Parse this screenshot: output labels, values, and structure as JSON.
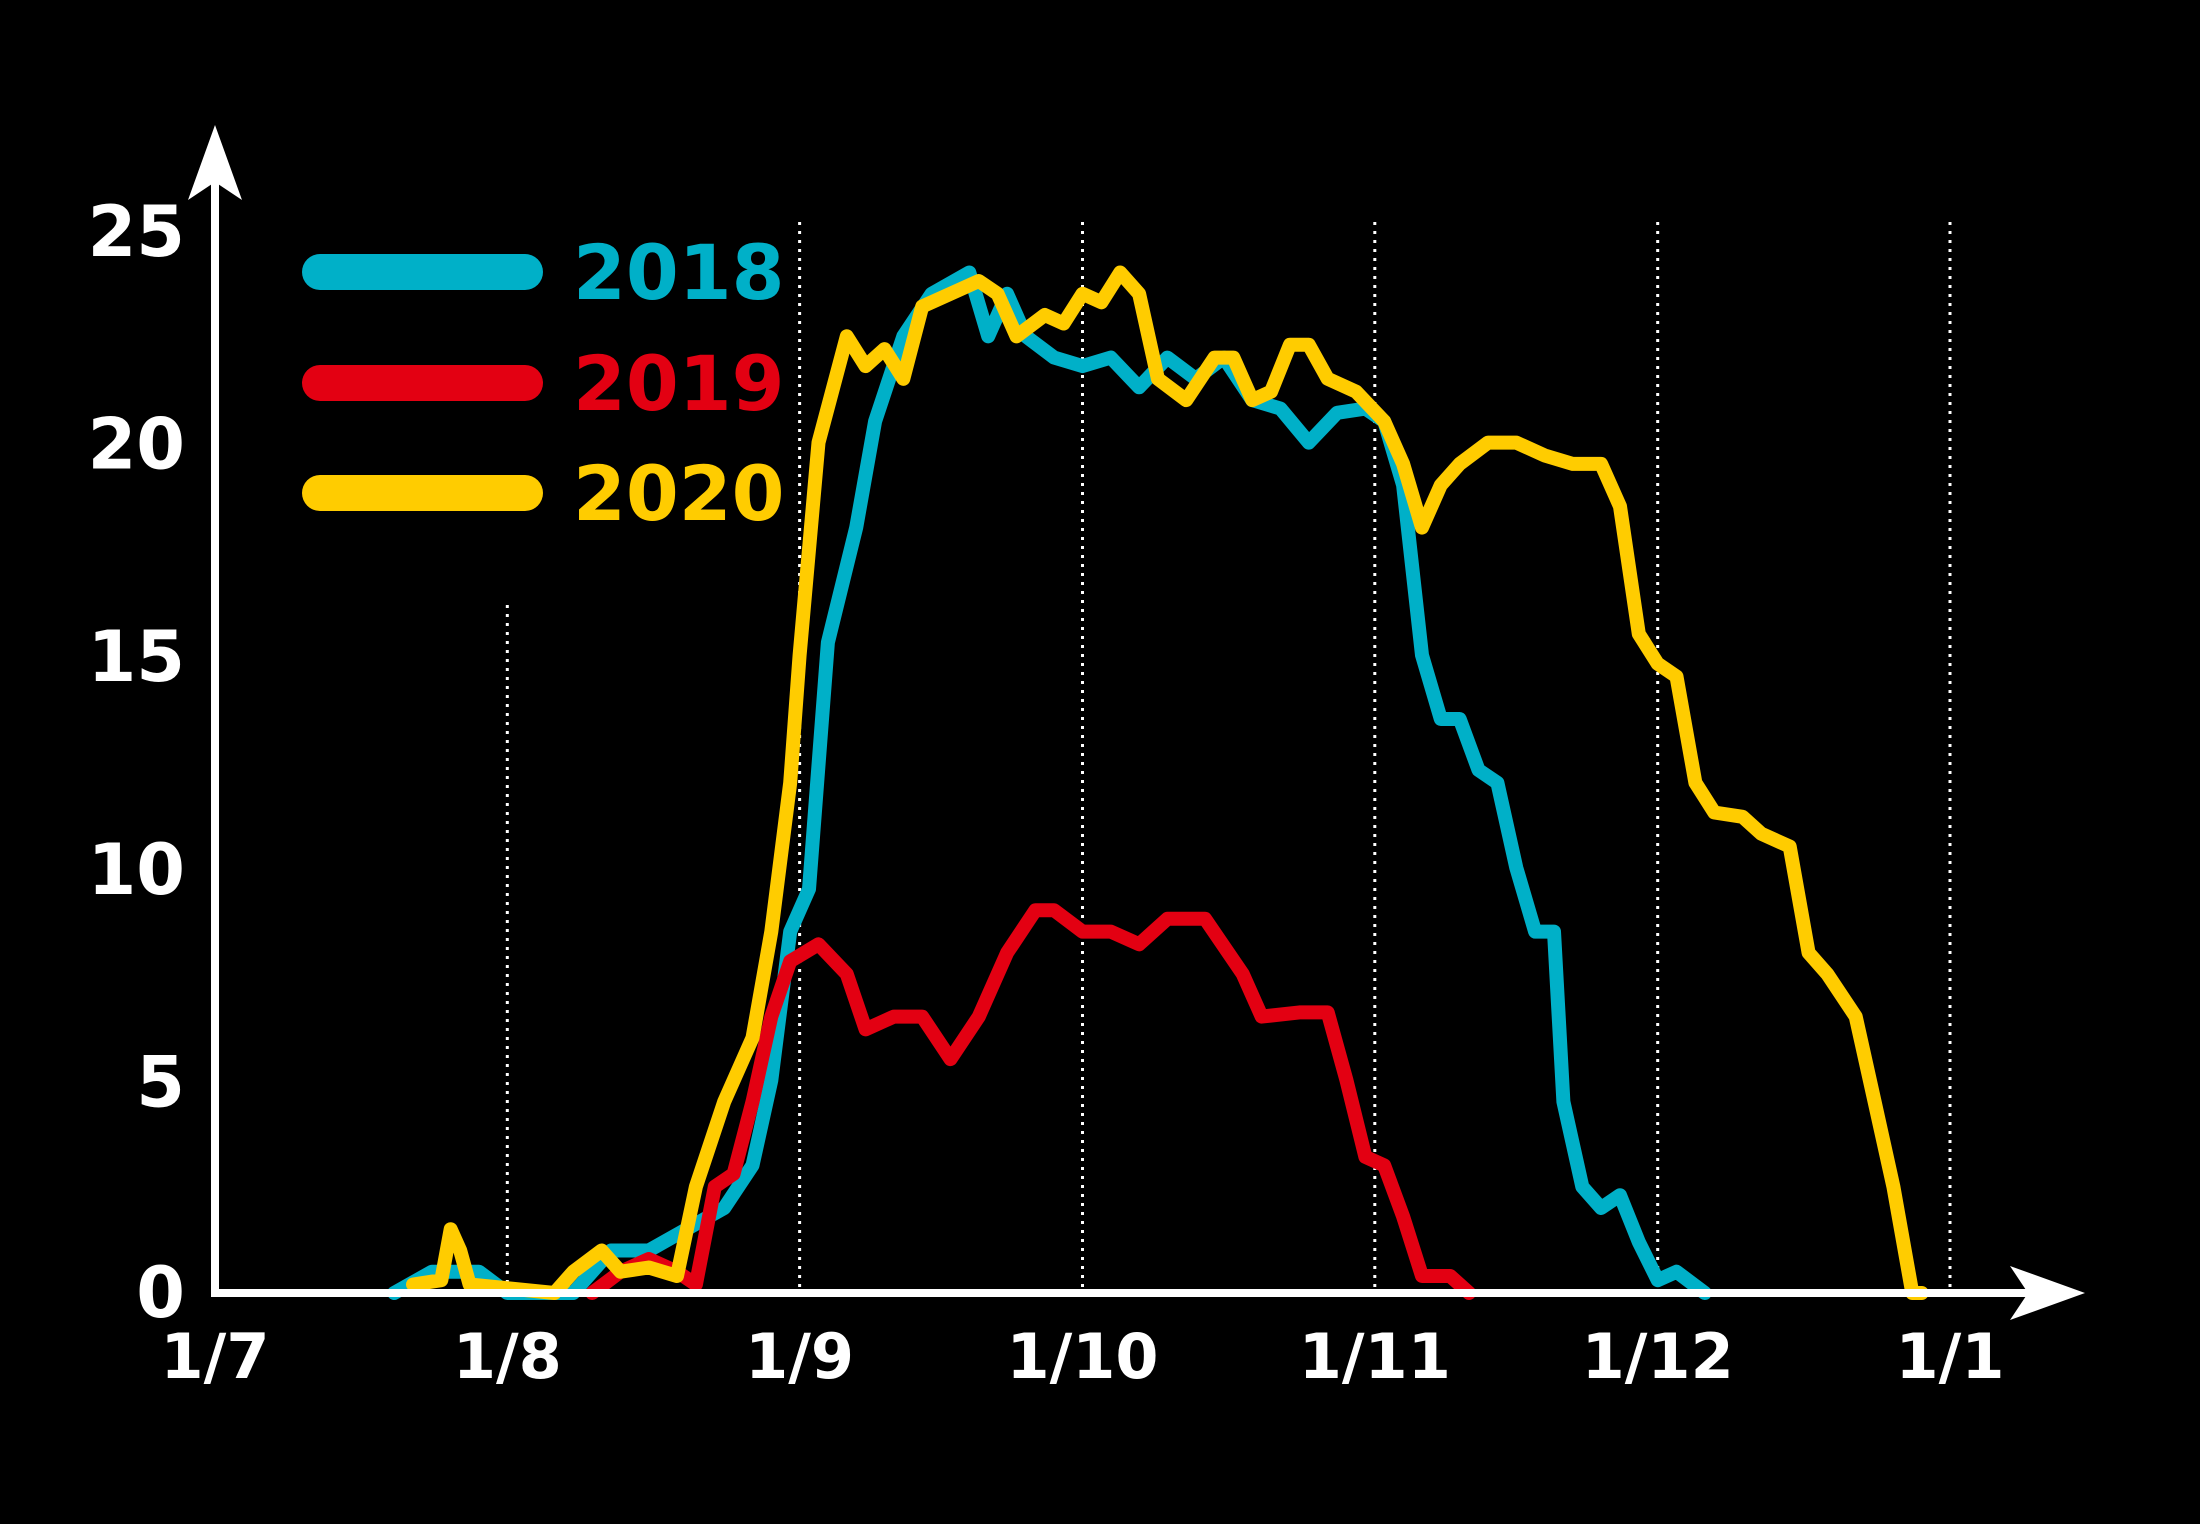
{
  "chart_data": {
    "type": "line",
    "title": "",
    "xlabel": "",
    "ylabel": "",
    "ylim": [
      0,
      25
    ],
    "yticks": [
      "0",
      "5",
      "10",
      "15",
      "20",
      "25"
    ],
    "xticks": [
      {
        "label": "1/7",
        "date": "2020-07-01"
      },
      {
        "label": "1/8",
        "date": "2020-08-01"
      },
      {
        "label": "1/9",
        "date": "2020-09-01"
      },
      {
        "label": "1/10",
        "date": "2020-10-01"
      },
      {
        "label": "1/11",
        "date": "2020-11-01"
      },
      {
        "label": "1/12",
        "date": "2020-12-01"
      },
      {
        "label": "1/1",
        "date": "2021-01-01"
      }
    ],
    "xlim": [
      "2020-07-01",
      "2021-01-01"
    ],
    "grid": "dotted vertical lines at each month",
    "legend_position": "top-left",
    "series": [
      {
        "name": "2018",
        "color": "#00b0c8",
        "points": [
          [
            "2020-07-20",
            0
          ],
          [
            "2020-07-24",
            0.5
          ],
          [
            "2020-07-29",
            0.5
          ],
          [
            "2020-08-01",
            0
          ],
          [
            "2020-08-08",
            0
          ],
          [
            "2020-08-12",
            1
          ],
          [
            "2020-08-16",
            1
          ],
          [
            "2020-08-20",
            1.5
          ],
          [
            "2020-08-24",
            2
          ],
          [
            "2020-08-27",
            3
          ],
          [
            "2020-08-29",
            5
          ],
          [
            "2020-08-31",
            8.5
          ],
          [
            "2020-09-02",
            9.5
          ],
          [
            "2020-09-04",
            15.3
          ],
          [
            "2020-09-07",
            18
          ],
          [
            "2020-09-09",
            20.5
          ],
          [
            "2020-09-12",
            22.5
          ],
          [
            "2020-09-15",
            23.5
          ],
          [
            "2020-09-19",
            24
          ],
          [
            "2020-09-21",
            22.5
          ],
          [
            "2020-09-23",
            23.5
          ],
          [
            "2020-09-25",
            22.5
          ],
          [
            "2020-09-28",
            22
          ],
          [
            "2020-10-01",
            21.8
          ],
          [
            "2020-10-04",
            22
          ],
          [
            "2020-10-07",
            21.3
          ],
          [
            "2020-10-10",
            22
          ],
          [
            "2020-10-13",
            21.5
          ],
          [
            "2020-10-16",
            22
          ],
          [
            "2020-10-19",
            21
          ],
          [
            "2020-10-22",
            20.8
          ],
          [
            "2020-10-25",
            20
          ],
          [
            "2020-10-28",
            20.7
          ],
          [
            "2020-10-31",
            20.8
          ],
          [
            "2020-11-02",
            20.5
          ],
          [
            "2020-11-04",
            19
          ],
          [
            "2020-11-06",
            15
          ],
          [
            "2020-11-08",
            13.5
          ],
          [
            "2020-11-10",
            13.5
          ],
          [
            "2020-11-12",
            12.3
          ],
          [
            "2020-11-14",
            12
          ],
          [
            "2020-11-16",
            10
          ],
          [
            "2020-11-18",
            8.5
          ],
          [
            "2020-11-20",
            8.5
          ],
          [
            "2020-11-21",
            4.5
          ],
          [
            "2020-11-23",
            2.5
          ],
          [
            "2020-11-25",
            2
          ],
          [
            "2020-11-27",
            2.3
          ],
          [
            "2020-11-29",
            1.2
          ],
          [
            "2020-12-01",
            0.3
          ],
          [
            "2020-12-03",
            0.5
          ],
          [
            "2020-12-06",
            0
          ]
        ]
      },
      {
        "name": "2019",
        "color": "#e30012",
        "points": [
          [
            "2020-08-10",
            0
          ],
          [
            "2020-08-13",
            0.5
          ],
          [
            "2020-08-16",
            0.8
          ],
          [
            "2020-08-19",
            0.5
          ],
          [
            "2020-08-21",
            0.2
          ],
          [
            "2020-08-23",
            2.5
          ],
          [
            "2020-08-25",
            2.8
          ],
          [
            "2020-08-27",
            4.5
          ],
          [
            "2020-08-29",
            6.5
          ],
          [
            "2020-08-31",
            7.8
          ],
          [
            "2020-09-03",
            8.2
          ],
          [
            "2020-09-06",
            7.5
          ],
          [
            "2020-09-08",
            6.2
          ],
          [
            "2020-09-11",
            6.5
          ],
          [
            "2020-09-14",
            6.5
          ],
          [
            "2020-09-17",
            5.5
          ],
          [
            "2020-09-20",
            6.5
          ],
          [
            "2020-09-23",
            8
          ],
          [
            "2020-09-26",
            9
          ],
          [
            "2020-09-28",
            9
          ],
          [
            "2020-10-01",
            8.5
          ],
          [
            "2020-10-04",
            8.5
          ],
          [
            "2020-10-07",
            8.2
          ],
          [
            "2020-10-10",
            8.8
          ],
          [
            "2020-10-14",
            8.8
          ],
          [
            "2020-10-18",
            7.5
          ],
          [
            "2020-10-20",
            6.5
          ],
          [
            "2020-10-24",
            6.6
          ],
          [
            "2020-10-27",
            6.6
          ],
          [
            "2020-10-29",
            5
          ],
          [
            "2020-10-31",
            3.2
          ],
          [
            "2020-11-02",
            3
          ],
          [
            "2020-11-04",
            1.8
          ],
          [
            "2020-11-06",
            0.4
          ],
          [
            "2020-11-09",
            0.4
          ],
          [
            "2020-11-11",
            0
          ]
        ]
      },
      {
        "name": "2020",
        "color": "#ffcc00",
        "points": [
          [
            "2020-07-22",
            0.2
          ],
          [
            "2020-07-25",
            0.3
          ],
          [
            "2020-07-26",
            1.5
          ],
          [
            "2020-07-27",
            1
          ],
          [
            "2020-07-28",
            0.2
          ],
          [
            "2020-08-06",
            0
          ],
          [
            "2020-08-08",
            0.5
          ],
          [
            "2020-08-11",
            1
          ],
          [
            "2020-08-13",
            0.5
          ],
          [
            "2020-08-16",
            0.6
          ],
          [
            "2020-08-19",
            0.4
          ],
          [
            "2020-08-21",
            2.5
          ],
          [
            "2020-08-24",
            4.5
          ],
          [
            "2020-08-27",
            6
          ],
          [
            "2020-08-29",
            8.5
          ],
          [
            "2020-08-31",
            12
          ],
          [
            "2020-09-01",
            15
          ],
          [
            "2020-09-03",
            20
          ],
          [
            "2020-09-06",
            22.5
          ],
          [
            "2020-09-08",
            21.8
          ],
          [
            "2020-09-10",
            22.2
          ],
          [
            "2020-09-12",
            21.5
          ],
          [
            "2020-09-14",
            23.2
          ],
          [
            "2020-09-17",
            23.5
          ],
          [
            "2020-09-20",
            23.8
          ],
          [
            "2020-09-22",
            23.5
          ],
          [
            "2020-09-24",
            22.5
          ],
          [
            "2020-09-27",
            23
          ],
          [
            "2020-09-29",
            22.8
          ],
          [
            "2020-10-01",
            23.5
          ],
          [
            "2020-10-03",
            23.3
          ],
          [
            "2020-10-05",
            24
          ],
          [
            "2020-10-07",
            23.5
          ],
          [
            "2020-10-09",
            21.5
          ],
          [
            "2020-10-12",
            21
          ],
          [
            "2020-10-15",
            22
          ],
          [
            "2020-10-17",
            22
          ],
          [
            "2020-10-19",
            21
          ],
          [
            "2020-10-21",
            21.2
          ],
          [
            "2020-10-23",
            22.3
          ],
          [
            "2020-10-25",
            22.3
          ],
          [
            "2020-10-27",
            21.5
          ],
          [
            "2020-10-30",
            21.2
          ],
          [
            "2020-11-02",
            20.5
          ],
          [
            "2020-11-04",
            19.5
          ],
          [
            "2020-11-06",
            18
          ],
          [
            "2020-11-08",
            19
          ],
          [
            "2020-11-10",
            19.5
          ],
          [
            "2020-11-13",
            20
          ],
          [
            "2020-11-16",
            20
          ],
          [
            "2020-11-19",
            19.7
          ],
          [
            "2020-11-22",
            19.5
          ],
          [
            "2020-11-25",
            19.5
          ],
          [
            "2020-11-27",
            18.5
          ],
          [
            "2020-11-29",
            15.5
          ],
          [
            "2020-12-01",
            14.8
          ],
          [
            "2020-12-03",
            14.5
          ],
          [
            "2020-12-05",
            12
          ],
          [
            "2020-12-07",
            11.3
          ],
          [
            "2020-12-10",
            11.2
          ],
          [
            "2020-12-12",
            10.8
          ],
          [
            "2020-12-15",
            10.5
          ],
          [
            "2020-12-17",
            8
          ],
          [
            "2020-12-19",
            7.5
          ],
          [
            "2020-12-22",
            6.5
          ],
          [
            "2020-12-24",
            4.5
          ],
          [
            "2020-12-26",
            2.5
          ],
          [
            "2020-12-28",
            0
          ],
          [
            "2020-12-29",
            0
          ]
        ]
      }
    ]
  }
}
